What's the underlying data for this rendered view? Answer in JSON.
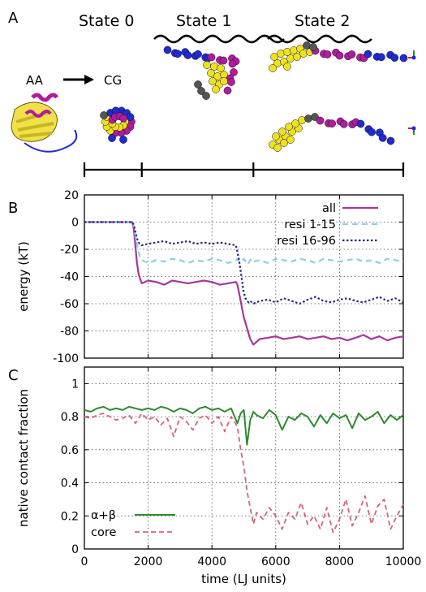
{
  "labels": {
    "panel_a": "A",
    "panel_b": "B",
    "panel_c": "C",
    "state0": "State 0",
    "state1": "State 1",
    "state2": "State 2",
    "aa": "AA",
    "cg": "CG"
  },
  "colors": {
    "all": "#a5379c",
    "resi_1_15": "#8ecde8",
    "resi_16_96": "#2b2a7e",
    "ab": "#2e8b2e",
    "core": "#d2667a",
    "bead_yellow": "#efe11c",
    "bead_magenta": "#b21aa0",
    "bead_blue": "#1f2bd0",
    "bead_gray": "#555555"
  },
  "state_timeline": {
    "boundaries": [
      0,
      1800,
      5300,
      10000
    ]
  },
  "chart_data": [
    {
      "type": "line",
      "panel": "B",
      "xlabel": "",
      "ylabel": "energy (kT)",
      "xlim": [
        0,
        10000
      ],
      "ylim": [
        -100,
        20
      ],
      "yticks": [
        -100,
        -80,
        -60,
        -40,
        -20,
        0,
        20
      ],
      "ytick_labels": [
        "-100",
        "-80",
        "-60",
        "-40",
        "-20",
        "0",
        "20"
      ],
      "grid": true,
      "legend_position": "top-right",
      "x": [
        0,
        250,
        500,
        750,
        1000,
        1250,
        1500,
        1550,
        1600,
        1650,
        1700,
        1750,
        1800,
        2000,
        2250,
        2500,
        2750,
        3000,
        3250,
        3500,
        3750,
        4000,
        4250,
        4500,
        4750,
        4800,
        4850,
        4900,
        4950,
        5000,
        5050,
        5100,
        5150,
        5200,
        5250,
        5300,
        5500,
        5750,
        6000,
        6250,
        6500,
        6750,
        7000,
        7250,
        7500,
        7750,
        8000,
        8250,
        8500,
        8750,
        9000,
        9250,
        9500,
        9750,
        10000
      ],
      "series": [
        {
          "name": "all",
          "values": [
            0,
            0,
            0,
            0,
            0,
            0,
            0,
            -5,
            -18,
            -30,
            -38,
            -42,
            -45,
            -43,
            -44,
            -46,
            -43,
            -44,
            -45,
            -44,
            -43,
            -44,
            -46,
            -45,
            -44,
            -46,
            -52,
            -58,
            -64,
            -70,
            -74,
            -78,
            -82,
            -86,
            -88,
            -90,
            -86,
            -85,
            -84,
            -86,
            -85,
            -84,
            -86,
            -85,
            -84,
            -86,
            -85,
            -87,
            -85,
            -83,
            -86,
            -84,
            -87,
            -85,
            -84
          ]
        },
        {
          "name": "resi 1-15",
          "values": [
            0,
            0,
            0,
            0,
            0,
            0,
            0,
            -3,
            -10,
            -16,
            -22,
            -26,
            -28,
            -30,
            -28,
            -29,
            -27,
            -28,
            -30,
            -28,
            -29,
            -27,
            -28,
            -30,
            -28,
            -27,
            -29,
            -28,
            -28,
            -27,
            -29,
            -28,
            -30,
            -28,
            -27,
            -29,
            -28,
            -30,
            -27,
            -28,
            -29,
            -27,
            -28,
            -30,
            -27,
            -28,
            -29,
            -28,
            -27,
            -29,
            -28,
            -30,
            -27,
            -28,
            -29
          ]
        },
        {
          "name": "resi 16-96",
          "values": [
            0,
            0,
            0,
            0,
            0,
            0,
            0,
            -2,
            -7,
            -12,
            -15,
            -16,
            -17,
            -16,
            -15,
            -14,
            -16,
            -15,
            -14,
            -16,
            -15,
            -16,
            -15,
            -16,
            -17,
            -22,
            -28,
            -36,
            -44,
            -52,
            -56,
            -58,
            -59,
            -58,
            -59,
            -60,
            -58,
            -57,
            -59,
            -56,
            -58,
            -60,
            -57,
            -55,
            -58,
            -59,
            -57,
            -56,
            -58,
            -59,
            -57,
            -55,
            -58,
            -56,
            -59
          ]
        }
      ]
    },
    {
      "type": "line",
      "panel": "C",
      "xlabel": "time (LJ units)",
      "ylabel": "native contact fraction",
      "xlim": [
        0,
        10000
      ],
      "ylim": [
        0,
        1.1
      ],
      "xticks": [
        0,
        2000,
        4000,
        6000,
        8000,
        10000
      ],
      "xtick_labels": [
        "0",
        "2000",
        "4000",
        "6000",
        "8000",
        "10000"
      ],
      "yticks": [
        0,
        0.2,
        0.4,
        0.6,
        0.8,
        1
      ],
      "ytick_labels": [
        "0",
        "0.2",
        "0.4",
        "0.6",
        "0.8",
        "1"
      ],
      "grid": true,
      "legend_position": "bottom-left",
      "x": [
        0,
        200,
        400,
        600,
        800,
        1000,
        1200,
        1400,
        1600,
        1800,
        2000,
        2200,
        2400,
        2600,
        2800,
        3000,
        3200,
        3400,
        3600,
        3800,
        4000,
        4200,
        4400,
        4600,
        4800,
        4900,
        5000,
        5100,
        5200,
        5300,
        5400,
        5600,
        5800,
        6000,
        6200,
        6400,
        6600,
        6800,
        7000,
        7200,
        7400,
        7600,
        7800,
        8000,
        8200,
        8400,
        8600,
        8800,
        9000,
        9200,
        9400,
        9600,
        9800,
        10000
      ],
      "series": [
        {
          "name": "α+β",
          "values": [
            0.84,
            0.83,
            0.85,
            0.86,
            0.84,
            0.85,
            0.84,
            0.86,
            0.85,
            0.84,
            0.85,
            0.84,
            0.86,
            0.85,
            0.83,
            0.85,
            0.84,
            0.82,
            0.85,
            0.86,
            0.84,
            0.85,
            0.83,
            0.85,
            0.76,
            0.82,
            0.84,
            0.63,
            0.78,
            0.83,
            0.81,
            0.79,
            0.84,
            0.81,
            0.72,
            0.8,
            0.78,
            0.82,
            0.8,
            0.74,
            0.81,
            0.76,
            0.82,
            0.79,
            0.81,
            0.73,
            0.82,
            0.78,
            0.8,
            0.83,
            0.76,
            0.81,
            0.78,
            0.81
          ]
        },
        {
          "name": "core",
          "values": [
            0.8,
            0.79,
            0.81,
            0.82,
            0.8,
            0.78,
            0.79,
            0.81,
            0.76,
            0.82,
            0.78,
            0.8,
            0.75,
            0.79,
            0.68,
            0.8,
            0.77,
            0.72,
            0.79,
            0.81,
            0.76,
            0.8,
            0.71,
            0.8,
            0.74,
            0.6,
            0.5,
            0.35,
            0.25,
            0.15,
            0.22,
            0.18,
            0.25,
            0.2,
            0.12,
            0.22,
            0.18,
            0.28,
            0.15,
            0.2,
            0.12,
            0.25,
            0.1,
            0.18,
            0.3,
            0.14,
            0.22,
            0.32,
            0.15,
            0.26,
            0.3,
            0.12,
            0.2,
            0.27
          ]
        }
      ]
    }
  ]
}
